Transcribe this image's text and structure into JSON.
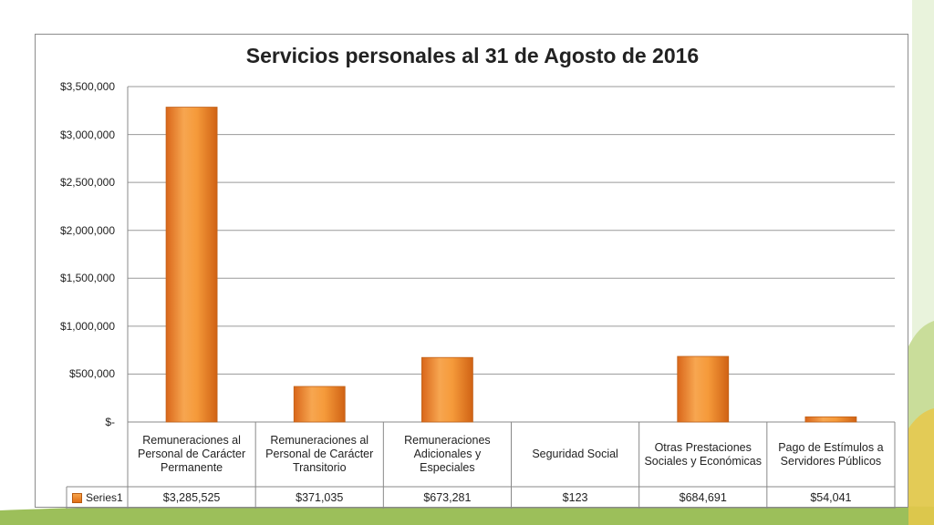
{
  "chart_data": {
    "type": "bar",
    "title": "Servicios personales al 31 de Agosto de 2016",
    "categories": [
      "Remuneraciones al Personal de Carácter Permanente",
      "Remuneraciones al Personal de Carácter Transitorio",
      "Remuneraciones Adicionales y Especiales",
      "Seguridad Social",
      "Otras Prestaciones Sociales y Económicas",
      "Pago de Estímulos a Servidores Públicos"
    ],
    "series": [
      {
        "name": "Series1",
        "values": [
          3285525,
          371035,
          673281,
          123,
          684691,
          54041
        ],
        "labels": [
          "$3,285,525",
          "$371,035",
          "$673,281",
          "$123",
          "$684,691",
          "$54,041"
        ],
        "color": "#f08a2a"
      }
    ],
    "ylim": [
      0,
      3500000
    ],
    "yticks": [
      0,
      500000,
      1000000,
      1500000,
      2000000,
      2500000,
      3000000,
      3500000
    ],
    "ytick_labels": [
      "$-",
      "$500,000",
      "$1,000,000",
      "$1,500,000",
      "$2,000,000",
      "$2,500,000",
      "$3,000,000",
      "$3,500,000"
    ],
    "grid": true,
    "legend": "data-table",
    "xlabel": "",
    "ylabel": ""
  }
}
